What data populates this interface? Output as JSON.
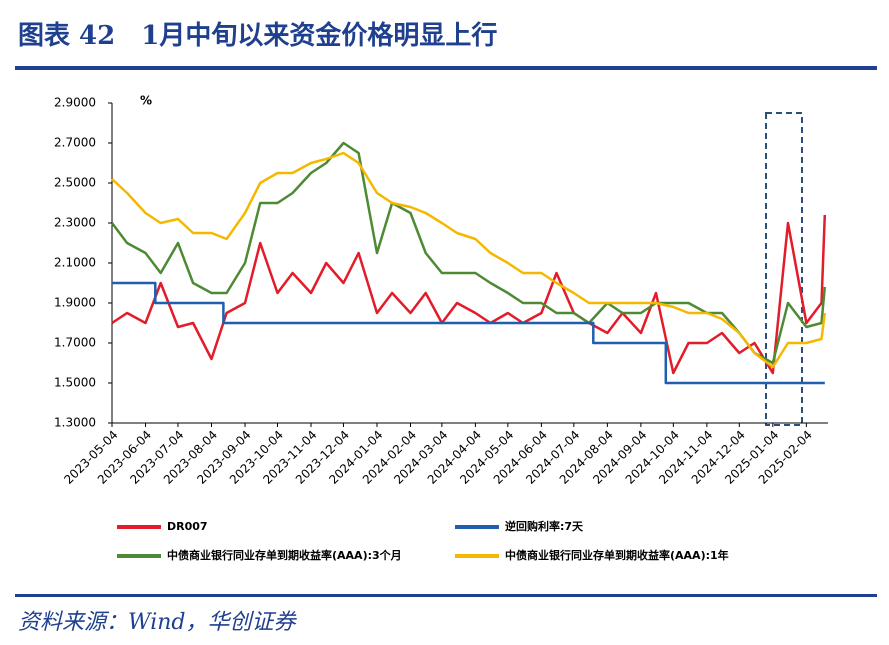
{
  "header": {
    "title": "图表 42　1月中旬以来资金价格明显上行"
  },
  "chart_data": {
    "type": "line",
    "y_unit": "%",
    "x": [
      "2023-05-04",
      "2023-05-18",
      "2023-06-04",
      "2023-06-18",
      "2023-07-04",
      "2023-07-18",
      "2023-08-04",
      "2023-08-18",
      "2023-09-04",
      "2023-09-18",
      "2023-10-04",
      "2023-10-18",
      "2023-11-04",
      "2023-11-18",
      "2023-12-04",
      "2023-12-18",
      "2024-01-04",
      "2024-01-18",
      "2024-02-04",
      "2024-02-18",
      "2024-03-04",
      "2024-03-18",
      "2024-04-04",
      "2024-04-18",
      "2024-05-04",
      "2024-05-18",
      "2024-06-04",
      "2024-06-18",
      "2024-07-04",
      "2024-07-18",
      "2024-08-04",
      "2024-08-18",
      "2024-09-04",
      "2024-09-18",
      "2024-10-04",
      "2024-10-18",
      "2024-11-04",
      "2024-11-18",
      "2024-12-04",
      "2024-12-18",
      "2025-01-04",
      "2025-01-18",
      "2025-02-04",
      "2025-02-18",
      "2025-02-21"
    ],
    "series": [
      {
        "name": "DR007",
        "color": "#e21c2a",
        "values": [
          1.8,
          1.85,
          1.8,
          2.0,
          1.78,
          1.8,
          1.62,
          1.85,
          1.9,
          2.2,
          1.95,
          2.05,
          1.95,
          2.1,
          2.0,
          2.15,
          1.85,
          1.95,
          1.85,
          1.95,
          1.8,
          1.9,
          1.85,
          1.8,
          1.85,
          1.8,
          1.85,
          2.05,
          1.85,
          1.8,
          1.75,
          1.85,
          1.75,
          1.95,
          1.55,
          1.7,
          1.7,
          1.75,
          1.65,
          1.7,
          1.55,
          2.3,
          1.8,
          1.9,
          2.34
        ]
      },
      {
        "name": "逆回购利率:7天",
        "color": "#1f5fae",
        "x": [
          "2023-05-04",
          "2023-06-13",
          "2023-06-13",
          "2023-08-15",
          "2023-08-15",
          "2024-07-22",
          "2024-07-22",
          "2024-09-27",
          "2024-09-27",
          "2025-02-21"
        ],
        "values": [
          2.0,
          2.0,
          1.9,
          1.9,
          1.8,
          1.8,
          1.7,
          1.7,
          1.5,
          1.5
        ]
      },
      {
        "name": "中债商业银行同业存单到期收益率(AAA):3个月",
        "color": "#4e8a34",
        "values": [
          2.3,
          2.2,
          2.15,
          2.05,
          2.2,
          2.0,
          1.95,
          1.95,
          2.1,
          2.4,
          2.4,
          2.45,
          2.55,
          2.6,
          2.7,
          2.65,
          2.15,
          2.4,
          2.35,
          2.15,
          2.05,
          2.05,
          2.05,
          2.0,
          1.95,
          1.9,
          1.9,
          1.85,
          1.85,
          1.8,
          1.9,
          1.85,
          1.85,
          1.9,
          1.9,
          1.9,
          1.85,
          1.85,
          1.75,
          1.65,
          1.6,
          1.9,
          1.78,
          1.8,
          1.98
        ]
      },
      {
        "name": "中债商业银行同业存单到期收益率(AAA):1年",
        "color": "#f5b800",
        "values": [
          2.52,
          2.45,
          2.35,
          2.3,
          2.32,
          2.25,
          2.25,
          2.22,
          2.35,
          2.5,
          2.55,
          2.55,
          2.6,
          2.62,
          2.65,
          2.6,
          2.45,
          2.4,
          2.38,
          2.35,
          2.3,
          2.25,
          2.22,
          2.15,
          2.1,
          2.05,
          2.05,
          2.0,
          1.95,
          1.9,
          1.9,
          1.9,
          1.9,
          1.9,
          1.88,
          1.85,
          1.85,
          1.82,
          1.75,
          1.65,
          1.58,
          1.7,
          1.7,
          1.72,
          1.85
        ]
      }
    ],
    "xlim": [
      "2023-05-04",
      "2025-02-24"
    ],
    "xticks": [
      "2023-05-04",
      "2023-06-04",
      "2023-07-04",
      "2023-08-04",
      "2023-09-04",
      "2023-10-04",
      "2023-11-04",
      "2023-12-04",
      "2024-01-04",
      "2024-02-04",
      "2024-03-04",
      "2024-04-04",
      "2024-05-04",
      "2024-06-04",
      "2024-07-04",
      "2024-08-04",
      "2024-09-04",
      "2024-10-04",
      "2024-11-04",
      "2024-12-04",
      "2025-01-04",
      "2025-02-04"
    ],
    "ylim": [
      1.3,
      2.9
    ],
    "yticks": [
      {
        "value": 1.3,
        "label": "1.3000"
      },
      {
        "value": 1.5,
        "label": "1.5000"
      },
      {
        "value": 1.7,
        "label": "1.7000"
      },
      {
        "value": 1.9,
        "label": "1.9000"
      },
      {
        "value": 2.1,
        "label": "2.1000"
      },
      {
        "value": 2.3,
        "label": "2.3000"
      },
      {
        "value": 2.5,
        "label": "2.5000"
      },
      {
        "value": 2.7,
        "label": "2.7000"
      },
      {
        "value": 2.9,
        "label": "2.9000"
      }
    ],
    "grid": false
  },
  "footer": {
    "source": "资料来源：Wind，华创证券"
  }
}
